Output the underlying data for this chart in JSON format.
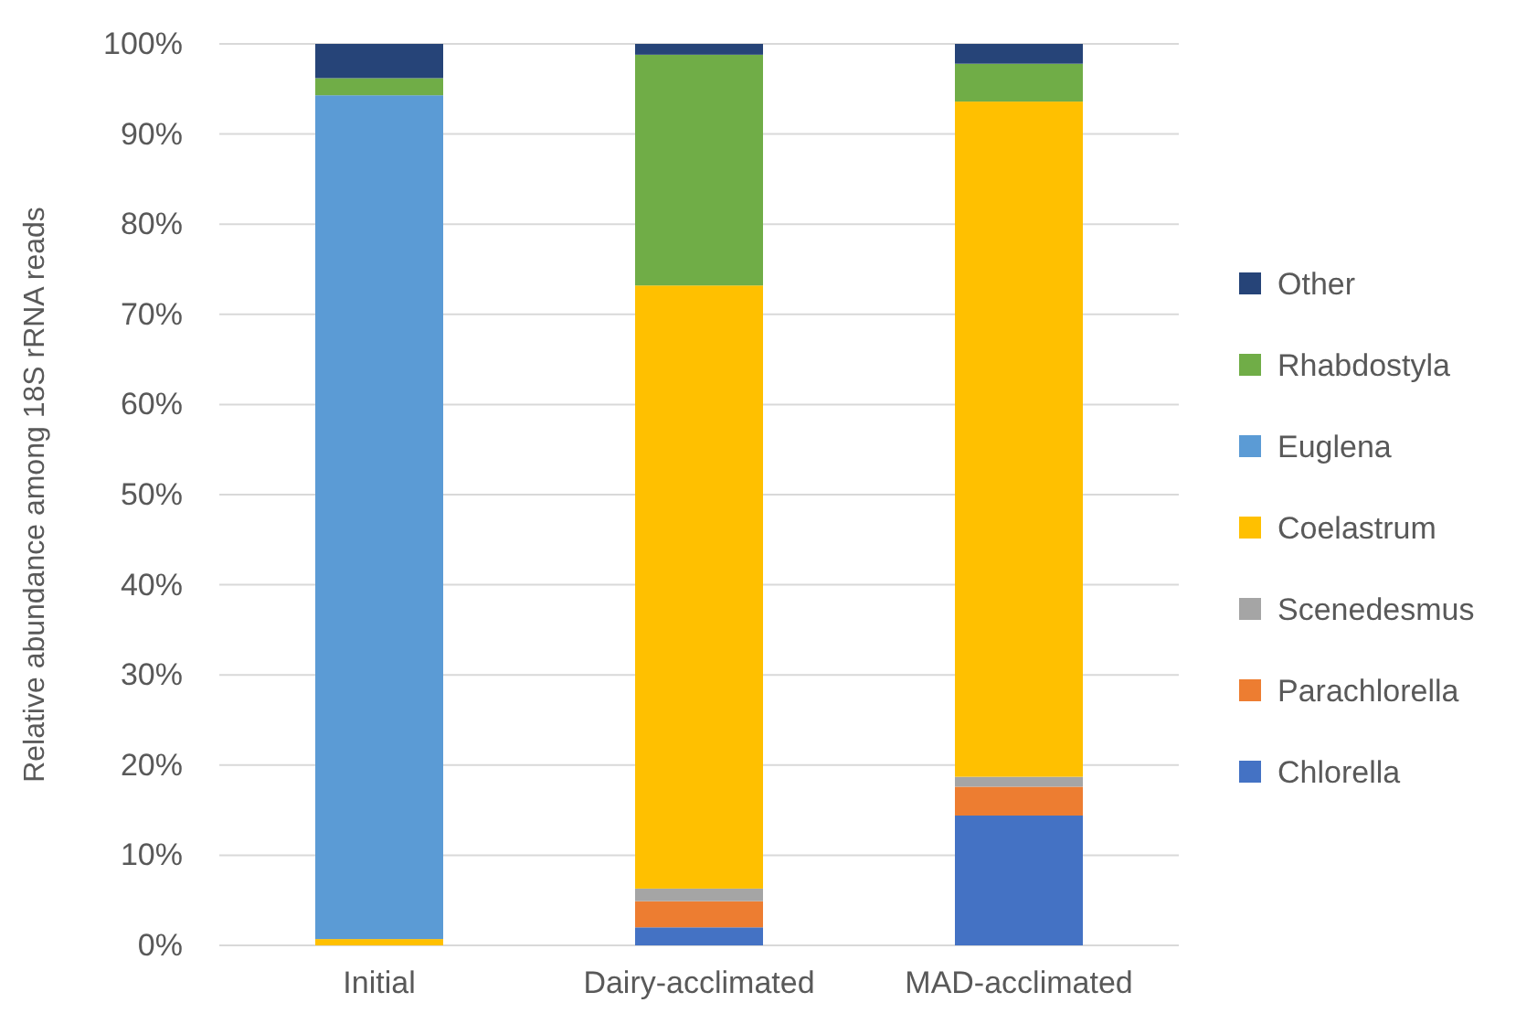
{
  "chart_data": {
    "type": "bar",
    "stacked": true,
    "ylabel": "Relative abundance among 18S rRNA reads",
    "categories": [
      "Initial",
      "Dairy-acclimated",
      "MAD-acclimated"
    ],
    "series": [
      {
        "name": "Chlorella",
        "color": "#4472c4",
        "values": [
          0,
          2.0,
          14.4
        ]
      },
      {
        "name": "Parachlorella",
        "color": "#ed7d31",
        "values": [
          0,
          2.9,
          3.2
        ]
      },
      {
        "name": "Scenedesmus",
        "color": "#a5a5a5",
        "values": [
          0,
          1.4,
          1.1
        ]
      },
      {
        "name": "Coelastrum",
        "color": "#ffc000",
        "values": [
          0.7,
          66.9,
          74.9
        ]
      },
      {
        "name": "Euglena",
        "color": "#5b9bd5",
        "values": [
          93.6,
          0,
          0
        ]
      },
      {
        "name": "Rhabdostyla",
        "color": "#70ad47",
        "values": [
          1.9,
          25.6,
          4.2
        ]
      },
      {
        "name": "Other",
        "color": "#264478",
        "values": [
          3.8,
          1.2,
          2.2
        ]
      }
    ],
    "ylim": [
      0,
      100
    ],
    "yticks": [
      {
        "value": 0,
        "label": "0%"
      },
      {
        "value": 10,
        "label": "10%"
      },
      {
        "value": 20,
        "label": "20%"
      },
      {
        "value": 30,
        "label": "30%"
      },
      {
        "value": 40,
        "label": "40%"
      },
      {
        "value": 50,
        "label": "50%"
      },
      {
        "value": 60,
        "label": "60%"
      },
      {
        "value": 70,
        "label": "70%"
      },
      {
        "value": 80,
        "label": "80%"
      },
      {
        "value": 90,
        "label": "90%"
      },
      {
        "value": 100,
        "label": "100%"
      }
    ],
    "grid": "y",
    "legend": "right"
  }
}
